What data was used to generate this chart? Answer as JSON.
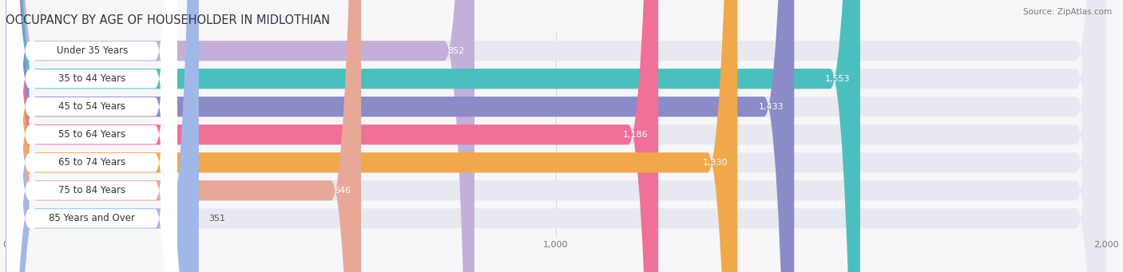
{
  "title": "OCCUPANCY BY AGE OF HOUSEHOLDER IN MIDLOTHIAN",
  "source": "Source: ZipAtlas.com",
  "categories": [
    "Under 35 Years",
    "35 to 44 Years",
    "45 to 54 Years",
    "55 to 64 Years",
    "65 to 74 Years",
    "75 to 84 Years",
    "85 Years and Over"
  ],
  "values": [
    852,
    1553,
    1433,
    1186,
    1330,
    646,
    351
  ],
  "bar_colors": [
    "#c4afd8",
    "#4bbfbf",
    "#8b8bc8",
    "#f07098",
    "#f0a84a",
    "#e8a898",
    "#a0b8e8"
  ],
  "bar_bg_color": "#e8e8f0",
  "label_bg_color": "#ffffff",
  "xlim": [
    0,
    2000
  ],
  "xticks": [
    0,
    1000,
    2000
  ],
  "xtick_labels": [
    "0",
    "1,000",
    "2,000"
  ],
  "value_color_inside": "#ffffff",
  "value_color_outside": "#555555",
  "title_fontsize": 10.5,
  "source_fontsize": 7.5,
  "label_fontsize": 8.5,
  "value_fontsize": 8,
  "bar_height": 0.72,
  "background_color": "#f7f7fa",
  "inside_threshold": 500
}
